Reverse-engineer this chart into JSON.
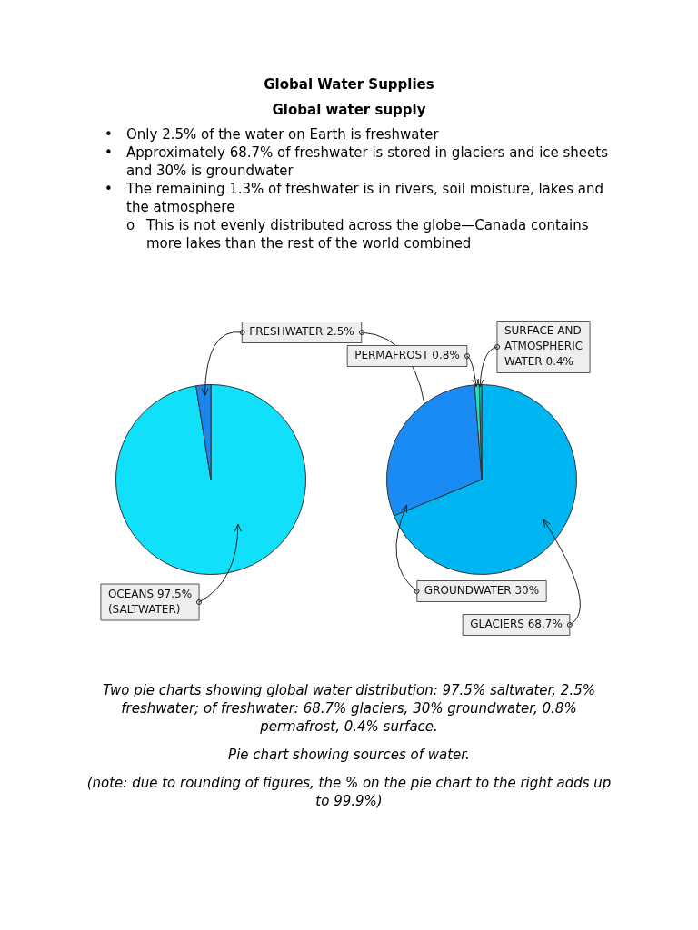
{
  "chart_data": [
    {
      "type": "pie",
      "title": "Global Water Supplies",
      "subtitle": "Global water supply",
      "annotations": [
        "• Only 2.5% of the water on Earth is freshwater",
        "• Approximately 68.7% of freshwater is stored in glaciers and ice sheets and 30% is groundwater",
        "• The remaining 1.3% of freshwater is in rivers, soil moisture, lakes and the atmosphere",
        "o This is not evenly distributed across the globe—Canada contains more lakes than the rest of the world combined"
      ],
      "categories": [
        "OCEANS 97.5% (SALTWATER)",
        "FRESHWATER 2.5%"
      ],
      "values": [
        97.5,
        2.5
      ],
      "colors": [
        "#10e0fa",
        "#1a86ee"
      ]
    },
    {
      "type": "pie",
      "annotations": [
        "Two pie charts showing global water distribution: 97.5% saltwater, 2.5% freshwater; of freshwater: 68.7% glaciers, 30% groundwater, 0.8% permafrost, 0.4% surface.",
        "Pie chart showing sources of water.",
        "(note: due to rounding of figures, the % on the pie chart to the right adds up to 99.9%)"
      ],
      "categories": [
        "GLACIERS 68.7%",
        "GROUNDWATER 30%",
        "PERMAFROST 0.8%",
        "SURFACE AND ATMOSPHERIC WATER 0.4%"
      ],
      "values": [
        68.7,
        30,
        0.8,
        0.4
      ],
      "colors": [
        "#00b6f2",
        "#1a8af4",
        "#1de3c3",
        "#10c2d2"
      ]
    }
  ]
}
